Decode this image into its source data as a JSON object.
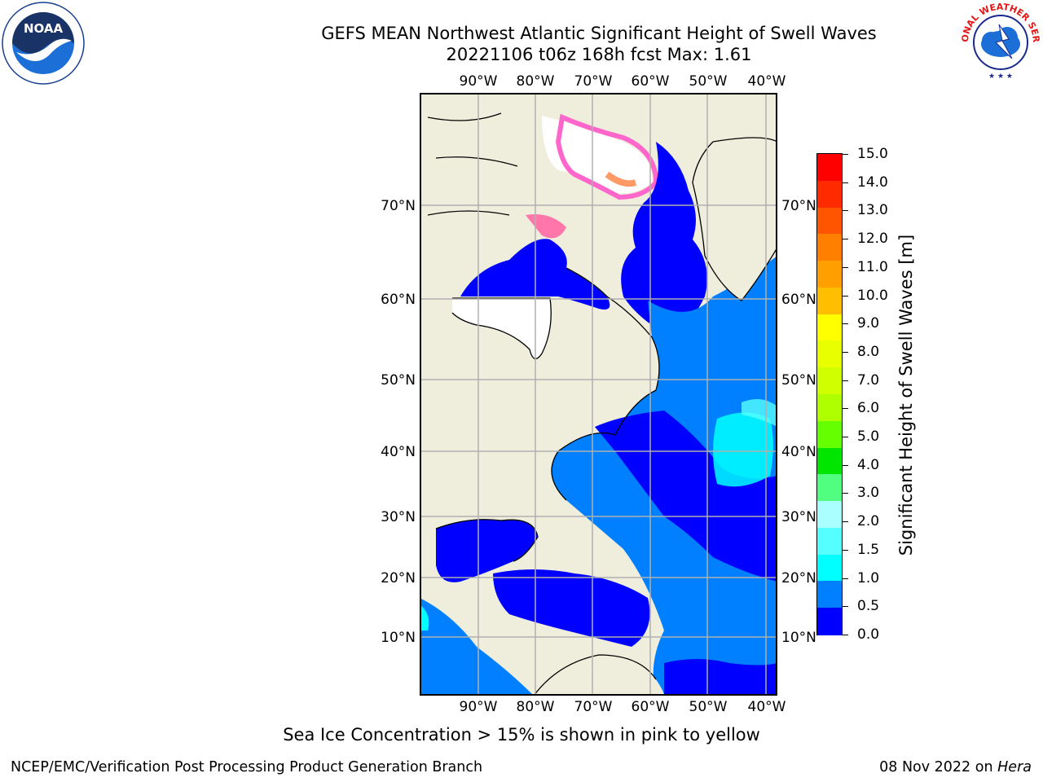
{
  "title": {
    "line1": "GEFS MEAN Northwest Atlantic Significant Height of Swell Waves",
    "line2": "20221106 t06z 168h fcst   Max: 1.61"
  },
  "logos": {
    "left": {
      "text": "NOAA",
      "ring_text": "NATIONAL OCEANIC AND ATMOSPHERIC ADMINISTRATION · U.S. DEPARTMENT OF COMMERCE"
    },
    "right": {
      "ring_text": "NATIONAL WEATHER SERVICE"
    }
  },
  "map": {
    "lon_labels": [
      "90°W",
      "80°W",
      "70°W",
      "60°W",
      "50°W",
      "40°W"
    ],
    "lat_labels": [
      "70°N",
      "60°N",
      "50°N",
      "40°N",
      "30°N",
      "20°N",
      "10°N"
    ],
    "colors": {
      "land": "#efeddc",
      "ice_mask": "#ffffff",
      "grid": "#b0b0b0",
      "coast": "#000000"
    }
  },
  "colorbar": {
    "title": "Significant Height of Swell Waves [m]",
    "ticks": [
      "15.0",
      "14.0",
      "13.0",
      "12.0",
      "11.0",
      "10.0",
      "9.0",
      "8.0",
      "7.0",
      "6.0",
      "5.0",
      "4.0",
      "3.0",
      "2.0",
      "1.5",
      "1.0",
      "0.5",
      "0.0"
    ],
    "colors_top_to_bottom": [
      "#ff0000",
      "#ff2a00",
      "#ff5500",
      "#ff7f00",
      "#ff9f00",
      "#ffbf00",
      "#ffff00",
      "#e8ff00",
      "#d0ff00",
      "#b0ff00",
      "#66ff00",
      "#00e600",
      "#50ff80",
      "#aaffff",
      "#55ffff",
      "#00ffff",
      "#0080ff",
      "#0000ff"
    ]
  },
  "caption": "Sea Ice Concentration > 15% is shown in pink to yellow",
  "footer": {
    "left": "NCEP/EMC/Verification Post Processing Product Generation Branch",
    "right_date": "08 Nov 2022 on",
    "right_host": "Hera"
  }
}
